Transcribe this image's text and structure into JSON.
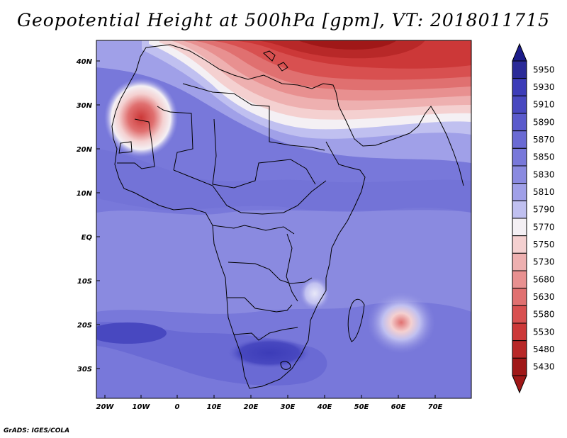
{
  "title": "Geopotential Height at 500hPa [gpm], VT: 2018011715",
  "footer": "GrADS: IGES/COLA",
  "lat_labels": [
    "40N",
    "30N",
    "20N",
    "10N",
    "EQ",
    "10S",
    "20S",
    "30S"
  ],
  "lon_labels": [
    "20W",
    "10W",
    "0",
    "10E",
    "20E",
    "30E",
    "40E",
    "50E",
    "60E",
    "70E"
  ],
  "colorbar": {
    "levels": [
      "5950",
      "5930",
      "5910",
      "5890",
      "5870",
      "5850",
      "5830",
      "5810",
      "5790",
      "5770",
      "5750",
      "5730",
      "5680",
      "5630",
      "5580",
      "5530",
      "5480",
      "5430"
    ],
    "colors": [
      "#2a2a98",
      "#3c3cb8",
      "#4848c0",
      "#5a5acc",
      "#6a6ad4",
      "#7878da",
      "#8a8ae0",
      "#a0a0e8",
      "#c0c0f0",
      "#f4f0f4",
      "#f4d0d0",
      "#eeb0b0",
      "#e89090",
      "#e07070",
      "#d85050",
      "#cc3838",
      "#b82828",
      "#a01818"
    ]
  }
}
